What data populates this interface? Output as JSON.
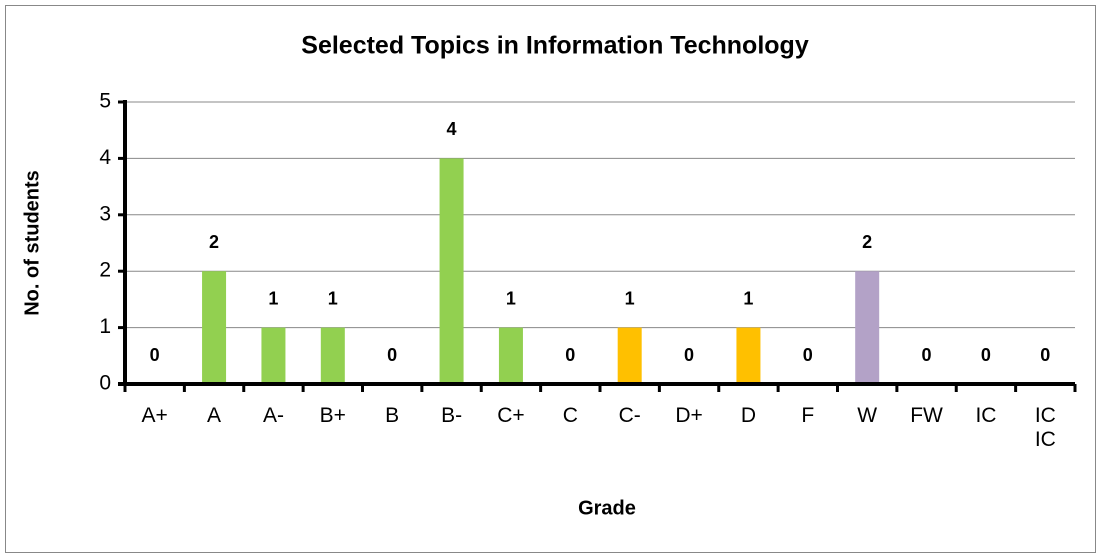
{
  "chart_data": {
    "type": "bar",
    "title": "Selected Topics in Information Technology",
    "x_label": "Grade",
    "y_label": "No. of students",
    "categories": [
      "A+",
      "A",
      "A-",
      "B+",
      "B",
      "B-",
      "C+",
      "C",
      "C-",
      "D+",
      "D",
      "F",
      "W",
      "FW",
      "IC",
      "IC IC"
    ],
    "values": [
      0,
      2,
      1,
      1,
      0,
      4,
      1,
      0,
      1,
      0,
      1,
      0,
      2,
      0,
      0,
      0
    ],
    "colors": [
      "#92d050",
      "#92d050",
      "#92d050",
      "#92d050",
      "#92d050",
      "#92d050",
      "#92d050",
      "#ffc000",
      "#ffc000",
      "#ffc000",
      "#ffc000",
      "#b3a2c7",
      "#b3a2c7",
      "#b3a2c7",
      "#b3a2c7",
      "#b3a2c7"
    ],
    "ylim": [
      0,
      5
    ],
    "yticks": [
      0,
      1,
      2,
      3,
      4,
      5
    ],
    "grid": true
  }
}
